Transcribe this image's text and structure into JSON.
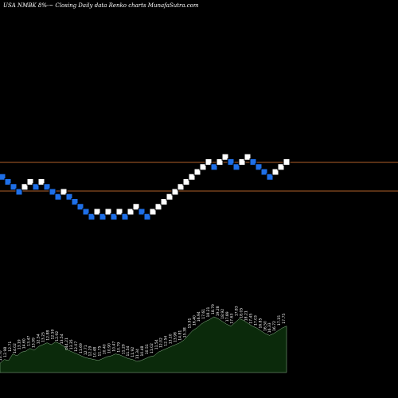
{
  "header": {
    "title": "USA NMBK 8%-~ Closing Daily data Renko charts MunafaSutra.com"
  },
  "colors": {
    "background": "#000000",
    "up_brick": "#ffffff",
    "down_brick": "#1e6fe8",
    "brick_border": "#000000",
    "reference_line": "#b0602a",
    "volume_fill": "#0b2a0b",
    "volume_stroke": "#8fbc8f"
  },
  "chart_data": [
    {
      "type": "renko",
      "title": "USA NMBK 8%-~ Closing Daily data Renko charts MunafaSutra.com",
      "brick_directions": [
        "down",
        "down",
        "down",
        "down",
        "up",
        "up",
        "down",
        "up",
        "down",
        "down",
        "down",
        "up",
        "down",
        "down",
        "down",
        "down",
        "down",
        "up",
        "down",
        "up",
        "down",
        "up",
        "down",
        "up",
        "up",
        "down",
        "down",
        "up",
        "up",
        "up",
        "up",
        "up",
        "up",
        "up",
        "up",
        "up",
        "up",
        "up",
        "down",
        "up",
        "up",
        "down",
        "down",
        "up",
        "up",
        "down",
        "down",
        "down",
        "down",
        "up",
        "up",
        "up"
      ],
      "reference_levels": [
        "upper",
        "lower"
      ],
      "grid": false,
      "legend": "none"
    },
    {
      "type": "area",
      "series": [
        {
          "values": [
            10,
            14,
            13,
            20,
            18,
            22,
            23,
            26,
            24,
            28,
            30,
            32,
            30,
            33,
            31,
            28,
            24,
            22,
            20,
            18,
            16,
            15,
            14,
            13,
            15,
            17,
            18,
            20,
            19,
            17,
            15,
            14,
            12,
            13,
            15,
            17,
            18,
            22,
            24,
            26,
            28,
            30,
            32,
            35,
            40,
            45,
            48,
            52,
            55,
            57,
            60,
            58,
            55,
            52,
            50,
            54,
            58,
            56,
            53,
            50,
            48,
            45,
            42,
            40,
            42,
            45,
            48,
            50
          ]
        }
      ],
      "volume_labels": [
        "13.70",
        "12.98",
        "12.71",
        "14.02",
        "13.19",
        "14.60",
        "13.47",
        "13.99",
        "12.54",
        "13.25",
        "12.88",
        "12.59",
        "12.92",
        "13.54",
        "14.21",
        "13.35",
        "12.07",
        "11.69",
        "12.71",
        "12.29",
        "10.48",
        "11.75",
        "10.40",
        "10.90",
        "10.47",
        "10.79",
        "11.29",
        "11.54",
        "11.92",
        "11.34",
        "10.48",
        "10.51",
        "11.02",
        "11.54",
        "12.02",
        "12.54",
        "13.10",
        "13.98",
        "14.81",
        "15.38",
        "15.91",
        "16.40",
        "16.94",
        "17.61",
        "18.21",
        "18.79",
        "19.28",
        "18.92",
        "17.89",
        "17.63",
        "17.83",
        "18.05",
        "18.21",
        "17.45",
        "17.03",
        "16.85",
        "16.50",
        "16.33",
        "16.72",
        "17.15",
        "17.75"
      ],
      "series_marker": "0"
    }
  ]
}
